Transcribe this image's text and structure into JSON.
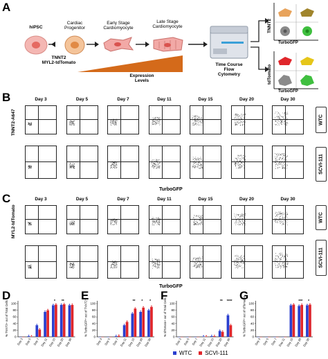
{
  "panels": {
    "a": "A",
    "b": "B",
    "c": "C",
    "d": "D",
    "e": "E",
    "f": "F",
    "g": "G"
  },
  "schematic": {
    "hipsc": "hiPSC",
    "cardiac_progenitor": "Cardiac\nProgenitor",
    "early_stage": "Early Stage\nCardiomyocyte",
    "late_stage": "Late Stage\nCardiomyocyte",
    "markers": "TNNT2\nMYL2-tdTomato",
    "expression": "Expression\nLevels",
    "cytometry": "Time Course\nFlow\nCytometry",
    "tnnt2_axis": "TNNT2",
    "turbogfp_axis": "TurboGFP",
    "tdtomato_axis": "tdTomato"
  },
  "flow_b": {
    "days": [
      "Day 3",
      "Day 5",
      "Day 7",
      "Day 11",
      "Day 15",
      "Day 20",
      "Day 30"
    ],
    "ylabel": "TNNT2-A647",
    "xlabel": "TurboGFP",
    "rows": [
      "WTC",
      "SCVI-111"
    ]
  },
  "flow_c": {
    "days": [
      "Day 3",
      "Day 5",
      "Day 7",
      "Day 11",
      "Day 15",
      "Day 20",
      "Day 30"
    ],
    "ylabel": "MYL2-tdTomato",
    "xlabel": "TurboGFP",
    "rows": [
      "WTC",
      "SCVI-111"
    ]
  },
  "legend": {
    "series_1": "WTC",
    "series_2": "SCVI-111"
  },
  "colors": {
    "wtc": "#2a3fcf",
    "scvi": "#e0262b",
    "ramp": "#d46a1a"
  },
  "chart_data": [
    {
      "type": "bar",
      "panel": "D",
      "ylabel": "% TNNT2+ out of Total Cells",
      "categories": [
        "Day 3",
        "Day 5",
        "Day 7",
        "Day 11",
        "Day 15",
        "Day 20",
        "Day 30"
      ],
      "ylim": [
        0,
        100
      ],
      "yticks": [
        "0",
        "20",
        "40",
        "60",
        "80",
        "100"
      ],
      "series": [
        {
          "name": "WTC",
          "values": [
            0,
            2,
            35,
            75,
            95,
            96,
            95
          ]
        },
        {
          "name": "SCVI-111",
          "values": [
            0,
            1,
            22,
            80,
            97,
            98,
            96
          ]
        }
      ],
      "significance": [
        "*",
        "**",
        ""
      ]
    },
    {
      "type": "bar",
      "panel": "E",
      "ylabel": "% TurboGFP+ out of TNNT2+",
      "categories": [
        "Day 3",
        "Day 5",
        "Day 7",
        "Day 11",
        "Day 15",
        "Day 20",
        "Day 30"
      ],
      "ylim": [
        0,
        100
      ],
      "yticks": [
        "0",
        "20",
        "40",
        "60",
        "80",
        "100"
      ],
      "series": [
        {
          "name": "WTC",
          "values": [
            0,
            0,
            2,
            35,
            70,
            75,
            80
          ]
        },
        {
          "name": "SCVI-111",
          "values": [
            0,
            0,
            3,
            45,
            85,
            88,
            90
          ]
        }
      ],
      "significance": [
        "**",
        "*",
        "*"
      ]
    },
    {
      "type": "bar",
      "panel": "F",
      "ylabel": "% tdTomato+ out of Total Cells",
      "categories": [
        "Day 3",
        "Day 5",
        "Day 7",
        "Day 11",
        "Day 15",
        "Day 20",
        "Day 30"
      ],
      "ylim": [
        0,
        100
      ],
      "yticks": [
        "0",
        "20",
        "40",
        "60",
        "80",
        "100"
      ],
      "series": [
        {
          "name": "WTC",
          "values": [
            0,
            0,
            0,
            1,
            2,
            18,
            65
          ]
        },
        {
          "name": "SCVI-111",
          "values": [
            0,
            0,
            0,
            1,
            2,
            15,
            35
          ]
        }
      ],
      "significance": [
        "**",
        "****"
      ]
    },
    {
      "type": "bar",
      "panel": "G",
      "ylabel": "% TurboGFP+ out of tdTomato+",
      "categories": [
        "Day 3",
        "Day 5",
        "Day 7",
        "Day 11",
        "Day 15",
        "Day 20",
        "Day 30"
      ],
      "ylim": [
        0,
        100
      ],
      "yticks": [
        "0",
        "20",
        "40",
        "60",
        "80",
        "100"
      ],
      "series": [
        {
          "name": "WTC",
          "values": [
            0,
            0,
            0,
            0,
            95,
            93,
            95
          ]
        },
        {
          "name": "SCVI-111",
          "values": [
            0,
            0,
            0,
            0,
            97,
            96,
            97
          ]
        }
      ],
      "significance": [
        "***",
        "*"
      ]
    }
  ]
}
